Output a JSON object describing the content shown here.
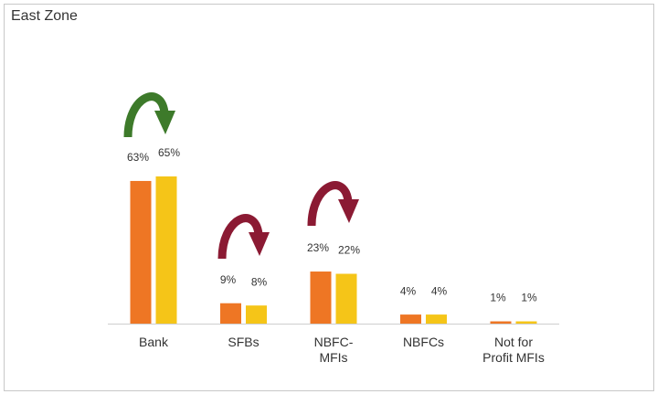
{
  "chart_data": {
    "type": "bar",
    "title": "East Zone",
    "categories": [
      "Bank",
      "SFBs",
      "NBFC-MFIs",
      "NBFCs",
      "Not for Profit MFIs"
    ],
    "series": [
      {
        "color": "#ee7624",
        "values": [
          63,
          9,
          23,
          4,
          1
        ],
        "value_labels": [
          "63%",
          "9%",
          "23%",
          "4%",
          "1%"
        ]
      },
      {
        "color": "#f5c518",
        "values": [
          65,
          8,
          22,
          4,
          1
        ],
        "value_labels": [
          "65%",
          "8%",
          "22%",
          "4%",
          "1%"
        ]
      }
    ],
    "ylim": [
      0,
      65
    ]
  }
}
